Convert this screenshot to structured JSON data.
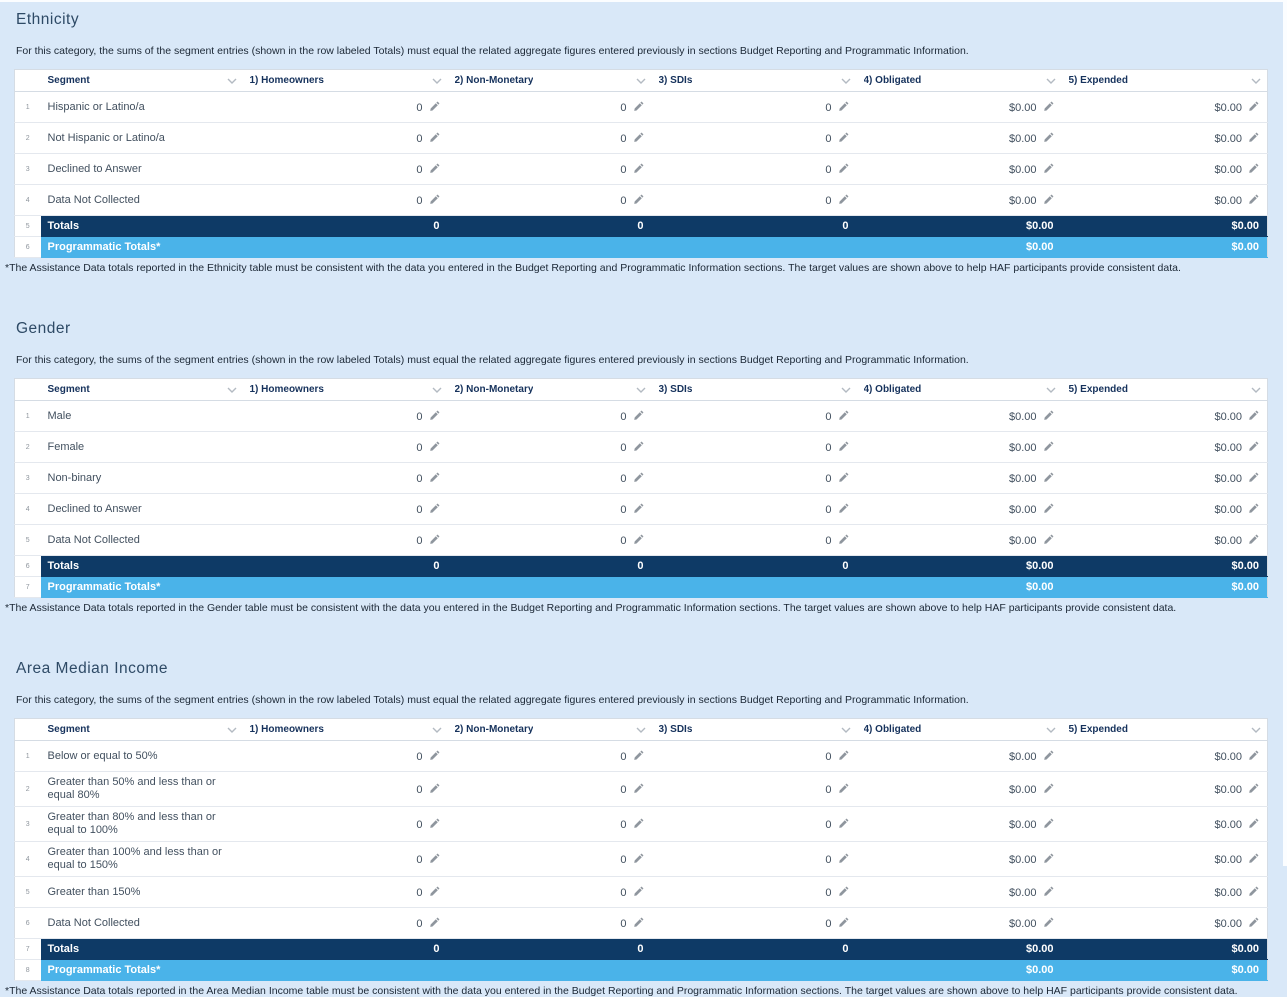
{
  "page": {
    "background": "#d9e8f8",
    "colors": {
      "totals_row_bg": "#0e3a66",
      "programmatic_row_bg": "#4ab3e9",
      "header_text": "#16325c",
      "table_border": "#d5dce4"
    },
    "icons": {
      "column_menu": "chevron-down-icon",
      "edit": "pencil-icon"
    }
  },
  "table": {
    "columns": [
      "Segment",
      "1) Homeowners",
      "2) Non-Monetary",
      "3) SDIs",
      "4) Obligated",
      "5) Expended"
    ]
  },
  "sections": [
    {
      "title": "Ethnicity",
      "instruction": "For this category, the sums of the segment entries (shown in the row labeled Totals) must equal the related aggregate figures entered previously in sections Budget Reporting and Programmatic Information.",
      "rows": [
        {
          "num": "1",
          "kind": "data",
          "label": "Hispanic or Latino/a",
          "values": [
            "0",
            "0",
            "0",
            "$0.00",
            "$0.00"
          ]
        },
        {
          "num": "2",
          "kind": "data",
          "label": "Not Hispanic or Latino/a",
          "values": [
            "0",
            "0",
            "0",
            "$0.00",
            "$0.00"
          ]
        },
        {
          "num": "3",
          "kind": "data",
          "label": "Declined to Answer",
          "values": [
            "0",
            "0",
            "0",
            "$0.00",
            "$0.00"
          ]
        },
        {
          "num": "4",
          "kind": "data",
          "label": "Data Not Collected",
          "values": [
            "0",
            "0",
            "0",
            "$0.00",
            "$0.00"
          ]
        },
        {
          "num": "5",
          "kind": "totals",
          "label": "Totals",
          "values": [
            "0",
            "0",
            "0",
            "$0.00",
            "$0.00"
          ]
        },
        {
          "num": "6",
          "kind": "programmatic",
          "label": "Programmatic Totals*",
          "values": [
            "",
            "",
            "",
            "$0.00",
            "$0.00"
          ]
        }
      ],
      "footnote": "*The Assistance Data totals reported in the Ethnicity table must be consistent with the data you entered in the Budget Reporting and Programmatic Information sections. The target values are shown above to help HAF participants provide consistent data."
    },
    {
      "title": "Gender",
      "instruction": "For this category, the sums of the segment entries (shown in the row labeled Totals) must equal the related aggregate figures entered previously in sections Budget Reporting and Programmatic Information.",
      "rows": [
        {
          "num": "1",
          "kind": "data",
          "label": "Male",
          "values": [
            "0",
            "0",
            "0",
            "$0.00",
            "$0.00"
          ]
        },
        {
          "num": "2",
          "kind": "data",
          "label": "Female",
          "values": [
            "0",
            "0",
            "0",
            "$0.00",
            "$0.00"
          ]
        },
        {
          "num": "3",
          "kind": "data",
          "label": "Non-binary",
          "values": [
            "0",
            "0",
            "0",
            "$0.00",
            "$0.00"
          ]
        },
        {
          "num": "4",
          "kind": "data",
          "label": "Declined to Answer",
          "values": [
            "0",
            "0",
            "0",
            "$0.00",
            "$0.00"
          ]
        },
        {
          "num": "5",
          "kind": "data",
          "label": "Data Not Collected",
          "values": [
            "0",
            "0",
            "0",
            "$0.00",
            "$0.00"
          ]
        },
        {
          "num": "6",
          "kind": "totals",
          "label": "Totals",
          "values": [
            "0",
            "0",
            "0",
            "$0.00",
            "$0.00"
          ]
        },
        {
          "num": "7",
          "kind": "programmatic",
          "label": "Programmatic Totals*",
          "values": [
            "",
            "",
            "",
            "$0.00",
            "$0.00"
          ]
        }
      ],
      "footnote": "*The Assistance Data totals reported in the Gender table must be consistent with the data you entered in the Budget Reporting and Programmatic Information sections. The target values are shown above to help HAF participants provide consistent data."
    },
    {
      "title": "Area Median Income",
      "instruction": "For this category, the sums of the segment entries (shown in the row labeled Totals) must equal the related aggregate figures entered previously in sections Budget Reporting and Programmatic Information.",
      "rows": [
        {
          "num": "1",
          "kind": "data",
          "label": "Below or equal to 50%",
          "values": [
            "0",
            "0",
            "0",
            "$0.00",
            "$0.00"
          ]
        },
        {
          "num": "2",
          "kind": "data",
          "label": "Greater than 50% and less than or equal 80%",
          "values": [
            "0",
            "0",
            "0",
            "$0.00",
            "$0.00"
          ]
        },
        {
          "num": "3",
          "kind": "data",
          "label": "Greater than 80% and less than or equal to 100%",
          "values": [
            "0",
            "0",
            "0",
            "$0.00",
            "$0.00"
          ]
        },
        {
          "num": "4",
          "kind": "data",
          "label": "Greater than 100% and less than or equal to 150%",
          "values": [
            "0",
            "0",
            "0",
            "$0.00",
            "$0.00"
          ]
        },
        {
          "num": "5",
          "kind": "data",
          "label": "Greater than 150%",
          "values": [
            "0",
            "0",
            "0",
            "$0.00",
            "$0.00"
          ]
        },
        {
          "num": "6",
          "kind": "data",
          "label": "Data Not Collected",
          "values": [
            "0",
            "0",
            "0",
            "$0.00",
            "$0.00"
          ]
        },
        {
          "num": "7",
          "kind": "totals",
          "label": "Totals",
          "values": [
            "0",
            "0",
            "0",
            "$0.00",
            "$0.00"
          ]
        },
        {
          "num": "8",
          "kind": "programmatic",
          "label": "Programmatic Totals*",
          "values": [
            "",
            "",
            "",
            "$0.00",
            "$0.00"
          ]
        }
      ],
      "footnote": "*The Assistance Data totals reported in the Area Median Income table must be consistent with the data you entered in the Budget Reporting and Programmatic Information sections. The target values are shown above to help HAF participants provide consistent data."
    }
  ]
}
